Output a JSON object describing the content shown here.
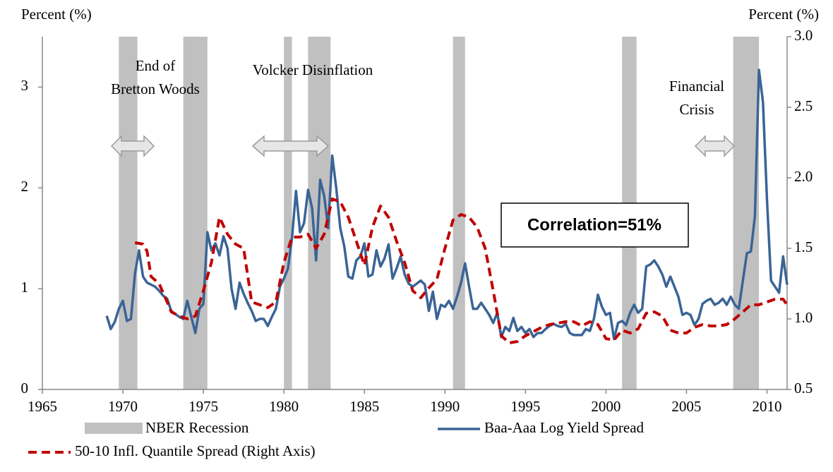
{
  "chart_data": {
    "type": "line",
    "y_label": "Percent (%)",
    "y2_label": "Percent (%)",
    "xlim": [
      1965,
      2011.25
    ],
    "xticks": [
      1965,
      1970,
      1975,
      1980,
      1985,
      1990,
      1995,
      2000,
      2005,
      2010
    ],
    "ylim": [
      0,
      3.5
    ],
    "yticks": [
      0,
      1,
      2,
      3
    ],
    "y2lim": [
      0.5,
      3.0
    ],
    "y2ticks": [
      0.5,
      {
        "value": 1,
        "label": "1.0"
      },
      1.5,
      {
        "value": 2,
        "label": "2.0"
      },
      2.5,
      {
        "value": 3,
        "label": "3.0"
      }
    ],
    "grid": false,
    "shaded_regions": {
      "name": "NBER Recession",
      "color": "#c0c0c0",
      "spans": [
        [
          1969.75,
          1970.9
        ],
        [
          1973.75,
          1975.25
        ],
        [
          1980.0,
          1980.5
        ],
        [
          1981.5,
          1982.9
        ],
        [
          1990.5,
          1991.25
        ],
        [
          2001.0,
          2001.9
        ],
        [
          2007.9,
          2009.5
        ]
      ]
    },
    "annotations": [
      {
        "lines": [
          "End of",
          "Bretton Woods"
        ]
      },
      {
        "lines": [
          "Volcker  Disinflation"
        ]
      },
      {
        "lines": [
          "Financial",
          "Crisis"
        ]
      }
    ],
    "correlation_label": "Correlation=51%",
    "series": [
      {
        "name": "Baa-Aaa Log Yield Spread",
        "color": "#3a6496",
        "dashed": false,
        "x": [
          1969,
          1969.25,
          1969.5,
          1969.75,
          1970,
          1970.25,
          1970.5,
          1970.75,
          1971,
          1971.25,
          1971.5,
          1971.75,
          1972,
          1972.25,
          1972.5,
          1972.75,
          1973,
          1973.25,
          1973.5,
          1973.75,
          1974,
          1974.25,
          1974.5,
          1974.75,
          1975,
          1975.25,
          1975.5,
          1975.75,
          1976,
          1976.25,
          1976.5,
          1976.75,
          1977,
          1977.25,
          1977.5,
          1977.75,
          1978,
          1978.25,
          1978.5,
          1978.75,
          1979,
          1979.25,
          1979.5,
          1979.75,
          1980,
          1980.25,
          1980.5,
          1980.75,
          1981,
          1981.25,
          1981.5,
          1981.75,
          1982,
          1982.25,
          1982.5,
          1982.75,
          1983,
          1983.25,
          1983.5,
          1983.75,
          1984,
          1984.25,
          1984.5,
          1984.75,
          1985,
          1985.25,
          1985.5,
          1985.75,
          1986,
          1986.25,
          1986.5,
          1986.75,
          1987,
          1987.25,
          1987.5,
          1987.75,
          1988,
          1988.25,
          1988.5,
          1988.75,
          1989,
          1989.25,
          1989.5,
          1989.75,
          1990,
          1990.25,
          1990.5,
          1990.75,
          1991,
          1991.25,
          1991.5,
          1991.75,
          1992,
          1992.25,
          1992.5,
          1992.75,
          1993,
          1993.25,
          1993.5,
          1993.75,
          1994,
          1994.25,
          1994.5,
          1994.75,
          1995,
          1995.25,
          1995.5,
          1995.75,
          1996,
          1996.25,
          1996.5,
          1996.75,
          1997,
          1997.25,
          1997.5,
          1997.75,
          1998,
          1998.25,
          1998.5,
          1998.75,
          1999,
          1999.25,
          1999.5,
          1999.75,
          2000,
          2000.25,
          2000.5,
          2000.75,
          2001,
          2001.25,
          2001.5,
          2001.75,
          2002,
          2002.25,
          2002.5,
          2002.75,
          2003,
          2003.25,
          2003.5,
          2003.75,
          2004,
          2004.25,
          2004.5,
          2004.75,
          2005,
          2005.25,
          2005.5,
          2005.75,
          2006,
          2006.25,
          2006.5,
          2006.75,
          2007,
          2007.25,
          2007.5,
          2007.75,
          2008,
          2008.25,
          2008.5,
          2008.75,
          2009,
          2009.25,
          2009.5,
          2009.75,
          2010,
          2010.25,
          2010.5,
          2010.75,
          2011,
          2011.25
        ],
        "values": [
          0.73,
          0.6,
          0.67,
          0.8,
          0.88,
          0.68,
          0.7,
          1.15,
          1.38,
          1.12,
          1.06,
          1.04,
          1.02,
          0.98,
          0.93,
          0.9,
          0.78,
          0.75,
          0.72,
          0.7,
          0.88,
          0.72,
          0.56,
          0.8,
          0.85,
          1.56,
          1.38,
          1.45,
          1.33,
          1.52,
          1.4,
          1.0,
          0.8,
          1.06,
          0.95,
          0.86,
          0.78,
          0.68,
          0.7,
          0.7,
          0.63,
          0.72,
          0.8,
          1.02,
          1.1,
          1.2,
          1.5,
          1.97,
          1.56,
          1.65,
          1.98,
          1.8,
          1.28,
          2.08,
          1.92,
          1.6,
          2.32,
          2.0,
          1.6,
          1.42,
          1.12,
          1.1,
          1.28,
          1.32,
          1.45,
          1.12,
          1.14,
          1.38,
          1.22,
          1.3,
          1.44,
          1.1,
          1.2,
          1.32,
          1.14,
          1.05,
          1.02,
          1.05,
          1.08,
          1.04,
          0.78,
          0.97,
          0.7,
          0.84,
          0.82,
          0.88,
          0.8,
          0.92,
          1.06,
          1.25,
          1.02,
          0.8,
          0.8,
          0.86,
          0.8,
          0.74,
          0.66,
          0.76,
          0.52,
          0.62,
          0.58,
          0.71,
          0.58,
          0.62,
          0.56,
          0.6,
          0.52,
          0.56,
          0.56,
          0.6,
          0.63,
          0.65,
          0.63,
          0.62,
          0.65,
          0.56,
          0.54,
          0.54,
          0.54,
          0.6,
          0.58,
          0.7,
          0.94,
          0.82,
          0.74,
          0.76,
          0.5,
          0.66,
          0.68,
          0.64,
          0.76,
          0.84,
          0.76,
          0.8,
          1.22,
          1.24,
          1.28,
          1.22,
          1.14,
          1.02,
          1.12,
          1.02,
          0.92,
          0.74,
          0.76,
          0.74,
          0.64,
          0.7,
          0.85,
          0.88,
          0.9,
          0.84,
          0.86,
          0.9,
          0.84,
          0.92,
          0.84,
          0.8,
          1.08,
          1.35,
          1.37,
          1.72,
          3.17,
          2.85,
          1.88,
          1.08,
          1.02,
          0.96,
          1.32,
          1.04
        ]
      },
      {
        "name": "50-10 Infl. Quantile Spread (Right Axis)",
        "color": "#c00000",
        "dashed": true,
        "axis": "y2",
        "x": [
          1970.75,
          1971.25,
          1971.5,
          1971.75,
          1972.25,
          1972.75,
          1973,
          1973.5,
          1974,
          1974.5,
          1975,
          1975.5,
          1976,
          1976.5,
          1977,
          1977.5,
          1978,
          1978.5,
          1979,
          1979.5,
          1980,
          1980.5,
          1981,
          1981.5,
          1982,
          1982.5,
          1983,
          1983.5,
          1984,
          1984.5,
          1985,
          1985.5,
          1986,
          1986.5,
          1987,
          1987.5,
          1988,
          1988.5,
          1989,
          1989.5,
          1990,
          1990.5,
          1991,
          1991.5,
          1992,
          1992.5,
          1993,
          1993.5,
          1994,
          1994.5,
          1995,
          1995.5,
          1996,
          1996.5,
          1997,
          1997.5,
          1998,
          1998.5,
          1999,
          1999.5,
          2000,
          2000.5,
          2001,
          2001.5,
          2002,
          2002.5,
          2003,
          2003.5,
          2004,
          2004.5,
          2005,
          2005.5,
          2006,
          2006.5,
          2007,
          2007.5,
          2008,
          2008.5,
          2009,
          2009.5,
          2010,
          2010.5,
          2011,
          2011.25
        ],
        "values": [
          1.54,
          1.53,
          1.48,
          1.3,
          1.25,
          1.12,
          1.05,
          1.02,
          1.0,
          1.02,
          1.2,
          1.4,
          1.72,
          1.6,
          1.53,
          1.5,
          1.12,
          1.1,
          1.08,
          1.12,
          1.4,
          1.58,
          1.58,
          1.6,
          1.5,
          1.6,
          1.85,
          1.83,
          1.72,
          1.55,
          1.38,
          1.65,
          1.8,
          1.72,
          1.55,
          1.4,
          1.2,
          1.15,
          1.22,
          1.28,
          1.5,
          1.7,
          1.74,
          1.72,
          1.65,
          1.5,
          1.2,
          0.88,
          0.83,
          0.84,
          0.88,
          0.91,
          0.94,
          0.96,
          0.97,
          0.98,
          0.98,
          0.95,
          0.98,
          0.96,
          0.86,
          0.85,
          0.92,
          0.9,
          0.93,
          1.04,
          1.05,
          1.02,
          0.92,
          0.9,
          0.9,
          0.94,
          0.96,
          0.95,
          0.95,
          0.96,
          1.0,
          1.05,
          1.1,
          1.1,
          1.12,
          1.14,
          1.14,
          1.1
        ]
      }
    ]
  }
}
